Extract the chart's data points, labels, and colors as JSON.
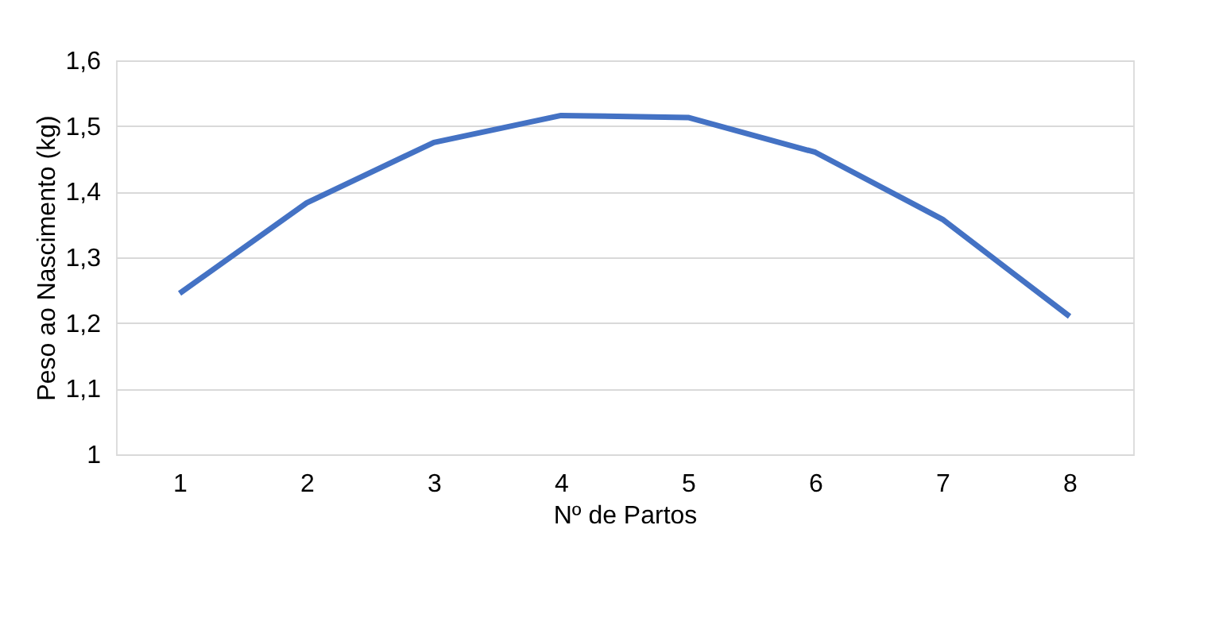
{
  "chart_data": {
    "type": "line",
    "xlabel": "Nº de Partos",
    "ylabel": "Peso ao Nascimento (kg)",
    "categories": [
      "1",
      "2",
      "3",
      "4",
      "5",
      "6",
      "7",
      "8"
    ],
    "series": [
      {
        "color": "#4472c4",
        "values": [
          1.245,
          1.383,
          1.475,
          1.516,
          1.513,
          1.46,
          1.358,
          1.21
        ]
      }
    ],
    "ylim": [
      1,
      1.6
    ],
    "yticks": [
      {
        "value": 1,
        "label": "1"
      },
      {
        "value": 1.1,
        "label": "1,1"
      },
      {
        "value": 1.2,
        "label": "1,2"
      },
      {
        "value": 1.3,
        "label": "1,3"
      },
      {
        "value": 1.4,
        "label": "1,4"
      },
      {
        "value": 1.5,
        "label": "1,5"
      },
      {
        "value": 1.6,
        "label": "1,6"
      }
    ],
    "grid": "y",
    "legend": false,
    "marker": "none",
    "line_style": "solid"
  }
}
